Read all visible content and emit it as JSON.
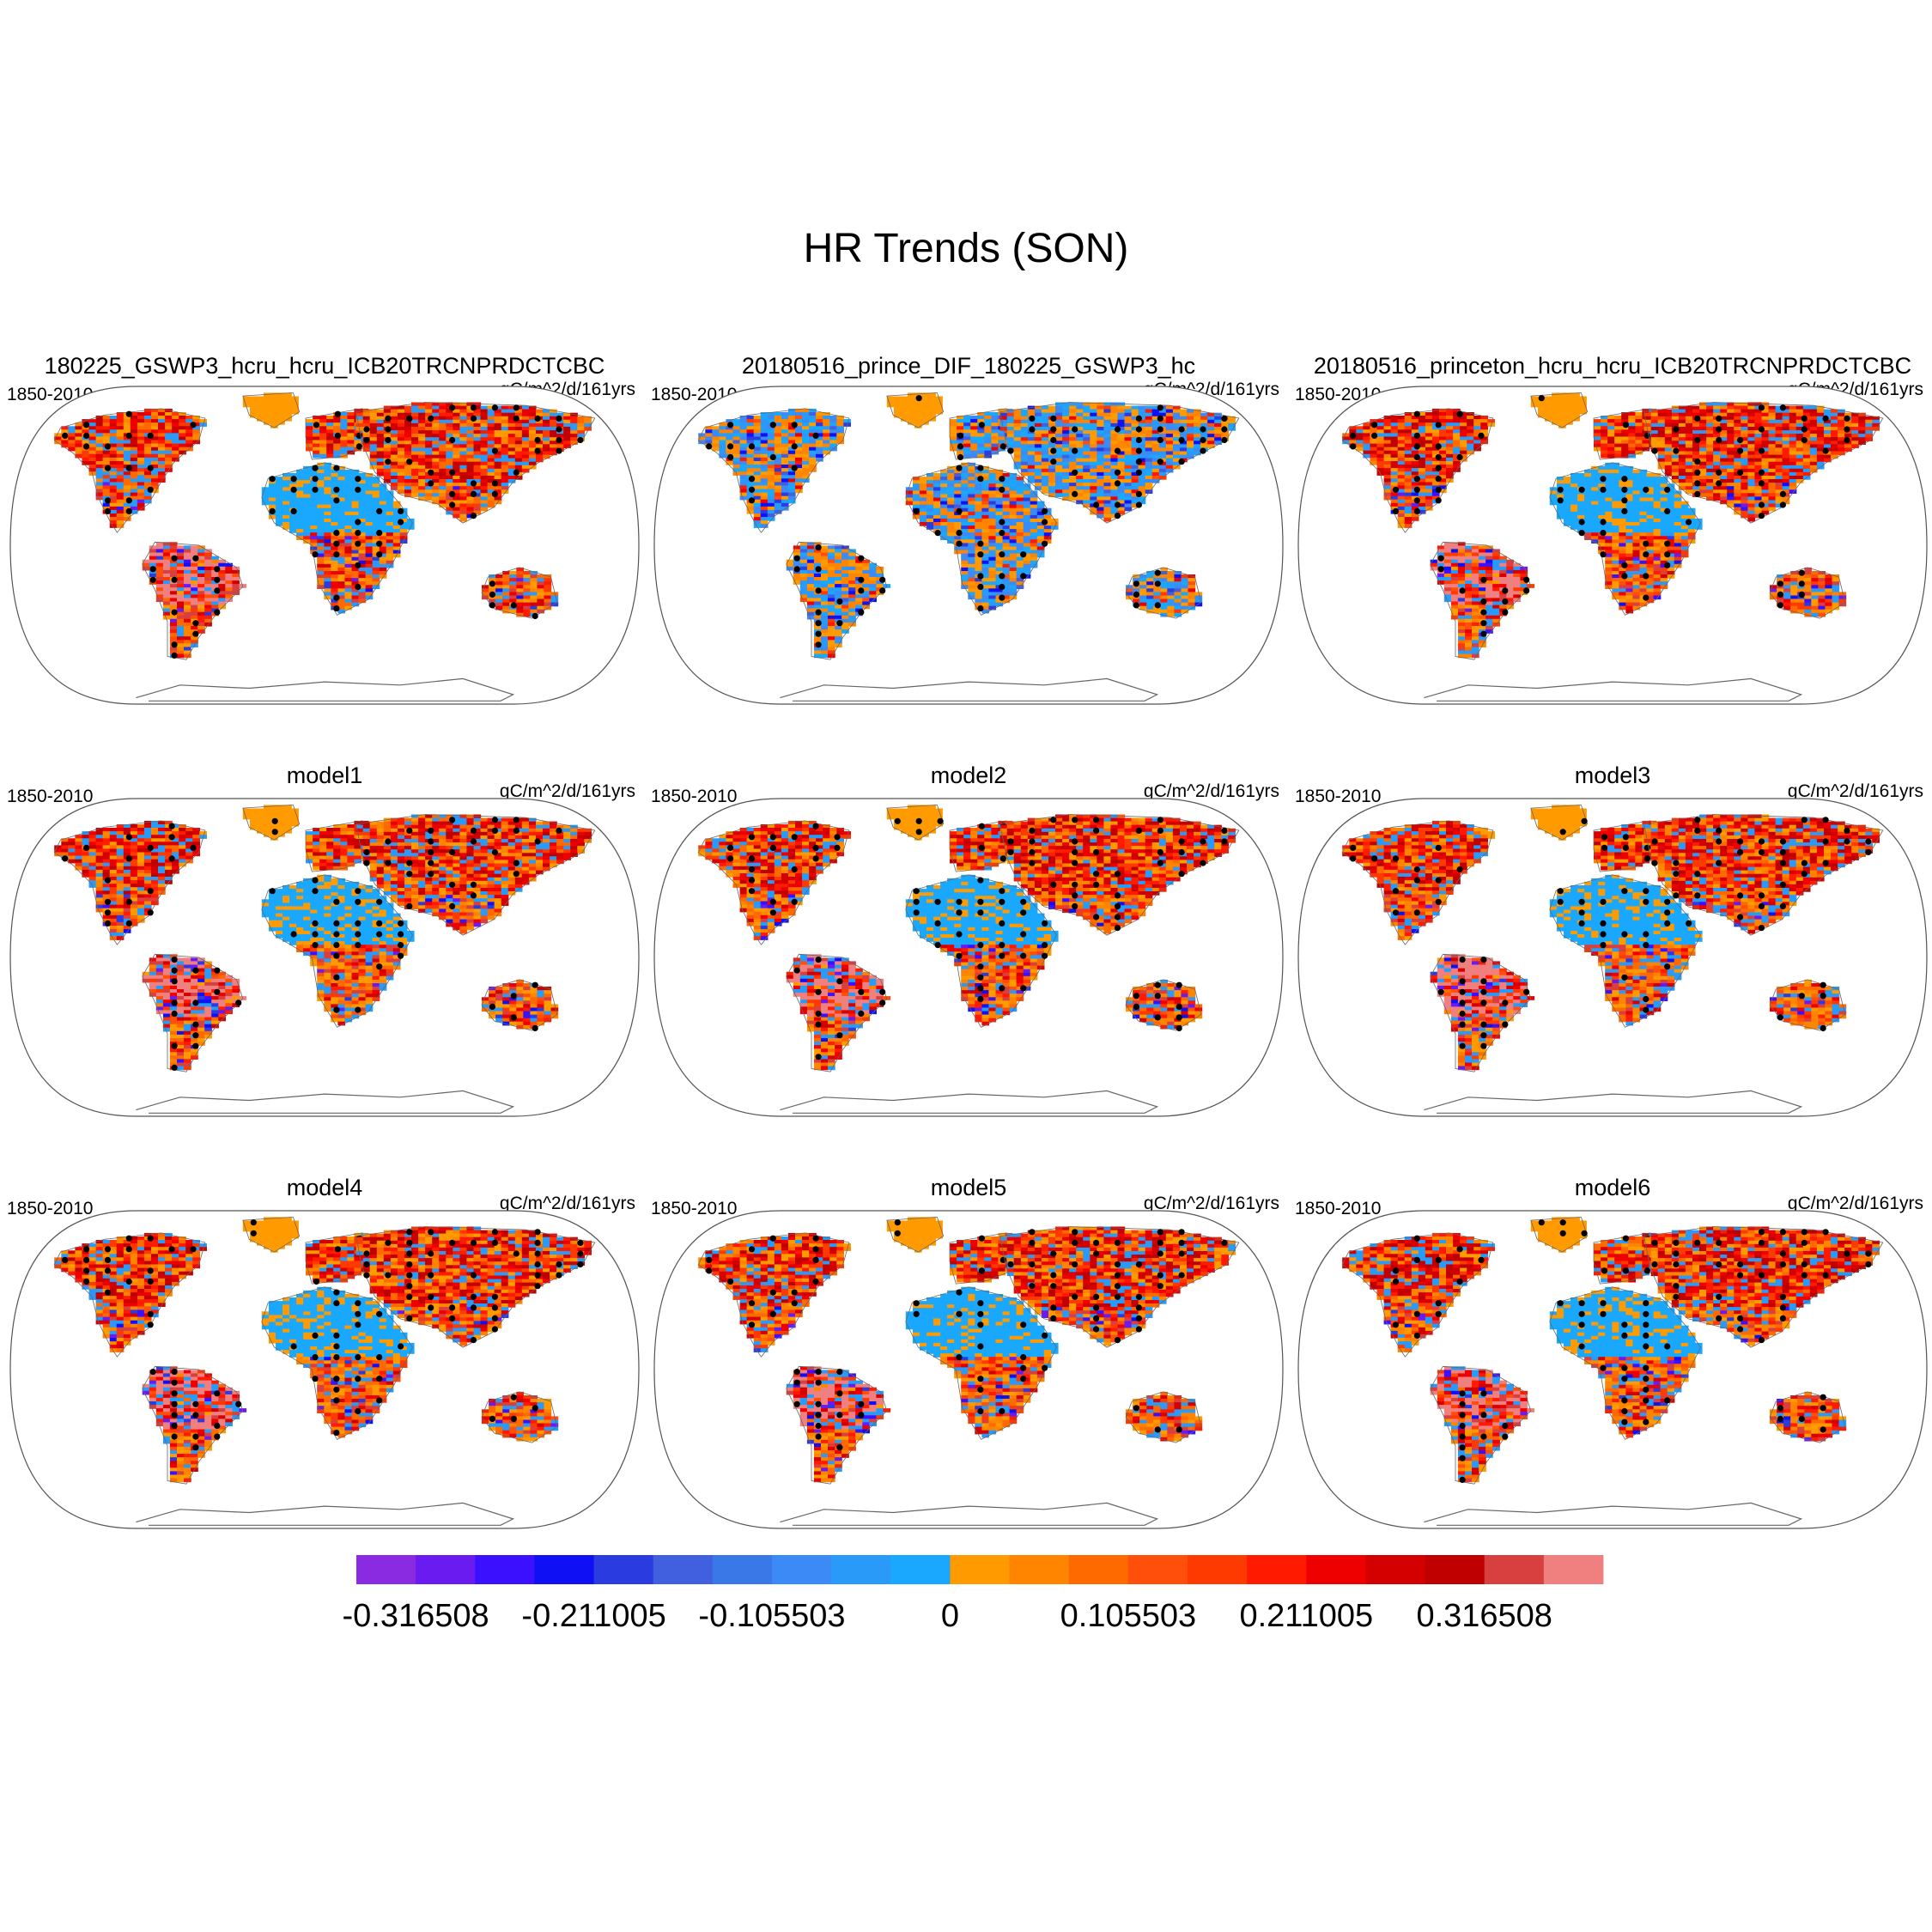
{
  "chart_data": {
    "type": "heatmap",
    "title": "HR Trends (SON)",
    "panels": [
      {
        "title": "180225_GSWP3_hcru_hcru_ICB20TRCNPRDCTCBC",
        "left": "1850-2010",
        "right": "gC/m^2/d/161yrs",
        "scheme": "warm",
        "seed": 11
      },
      {
        "title": "20180516_prince_DIF_180225_GSWP3_hc",
        "left": "1850-2010",
        "right": "gC/m^2/d/161yrs",
        "scheme": "diff",
        "seed": 23
      },
      {
        "title": "20180516_princeton_hcru_hcru_ICB20TRCNPRDCTCBC",
        "left": "1850-2010",
        "right": "gC/m^2/d/161yrs",
        "scheme": "warm",
        "seed": 37
      },
      {
        "title": "model1",
        "left": "1850-2010",
        "right": "gC/m^2/d/161yrs",
        "scheme": "warm",
        "seed": 41
      },
      {
        "title": "model2",
        "left": "1850-2010",
        "right": "gC/m^2/d/161yrs",
        "scheme": "warm",
        "seed": 53
      },
      {
        "title": "model3",
        "left": "1850-2010",
        "right": "gC/m^2/d/161yrs",
        "scheme": "warm",
        "seed": 67
      },
      {
        "title": "model4",
        "left": "1850-2010",
        "right": "gC/m^2/d/161yrs",
        "scheme": "warm",
        "seed": 71
      },
      {
        "title": "model5",
        "left": "1850-2010",
        "right": "gC/m^2/d/161yrs",
        "scheme": "warm",
        "seed": 83
      },
      {
        "title": "model6",
        "left": "1850-2010",
        "right": "gC/m^2/d/161yrs",
        "scheme": "warm",
        "seed": 97
      }
    ],
    "colorbar": {
      "colors": [
        "#8a2be2",
        "#6a1bf0",
        "#3b10ff",
        "#1010f5",
        "#2a3ce0",
        "#4060e0",
        "#3a78e8",
        "#3b8af5",
        "#2a9af8",
        "#1aa8ff",
        "#ff9a00",
        "#ff8400",
        "#ff6a00",
        "#ff4f0a",
        "#ff3a00",
        "#ff1a00",
        "#ee0000",
        "#d40000",
        "#c00000",
        "#d84040",
        "#f08080"
      ],
      "tick_labels": [
        "-0.316508",
        "-0.211005",
        "-0.105503",
        "0",
        "0.105503",
        "0.211005",
        "0.316508"
      ],
      "tick_values": [
        -0.316508,
        -0.211005,
        -0.105503,
        0,
        0.105503,
        0.211005,
        0.316508
      ]
    }
  }
}
